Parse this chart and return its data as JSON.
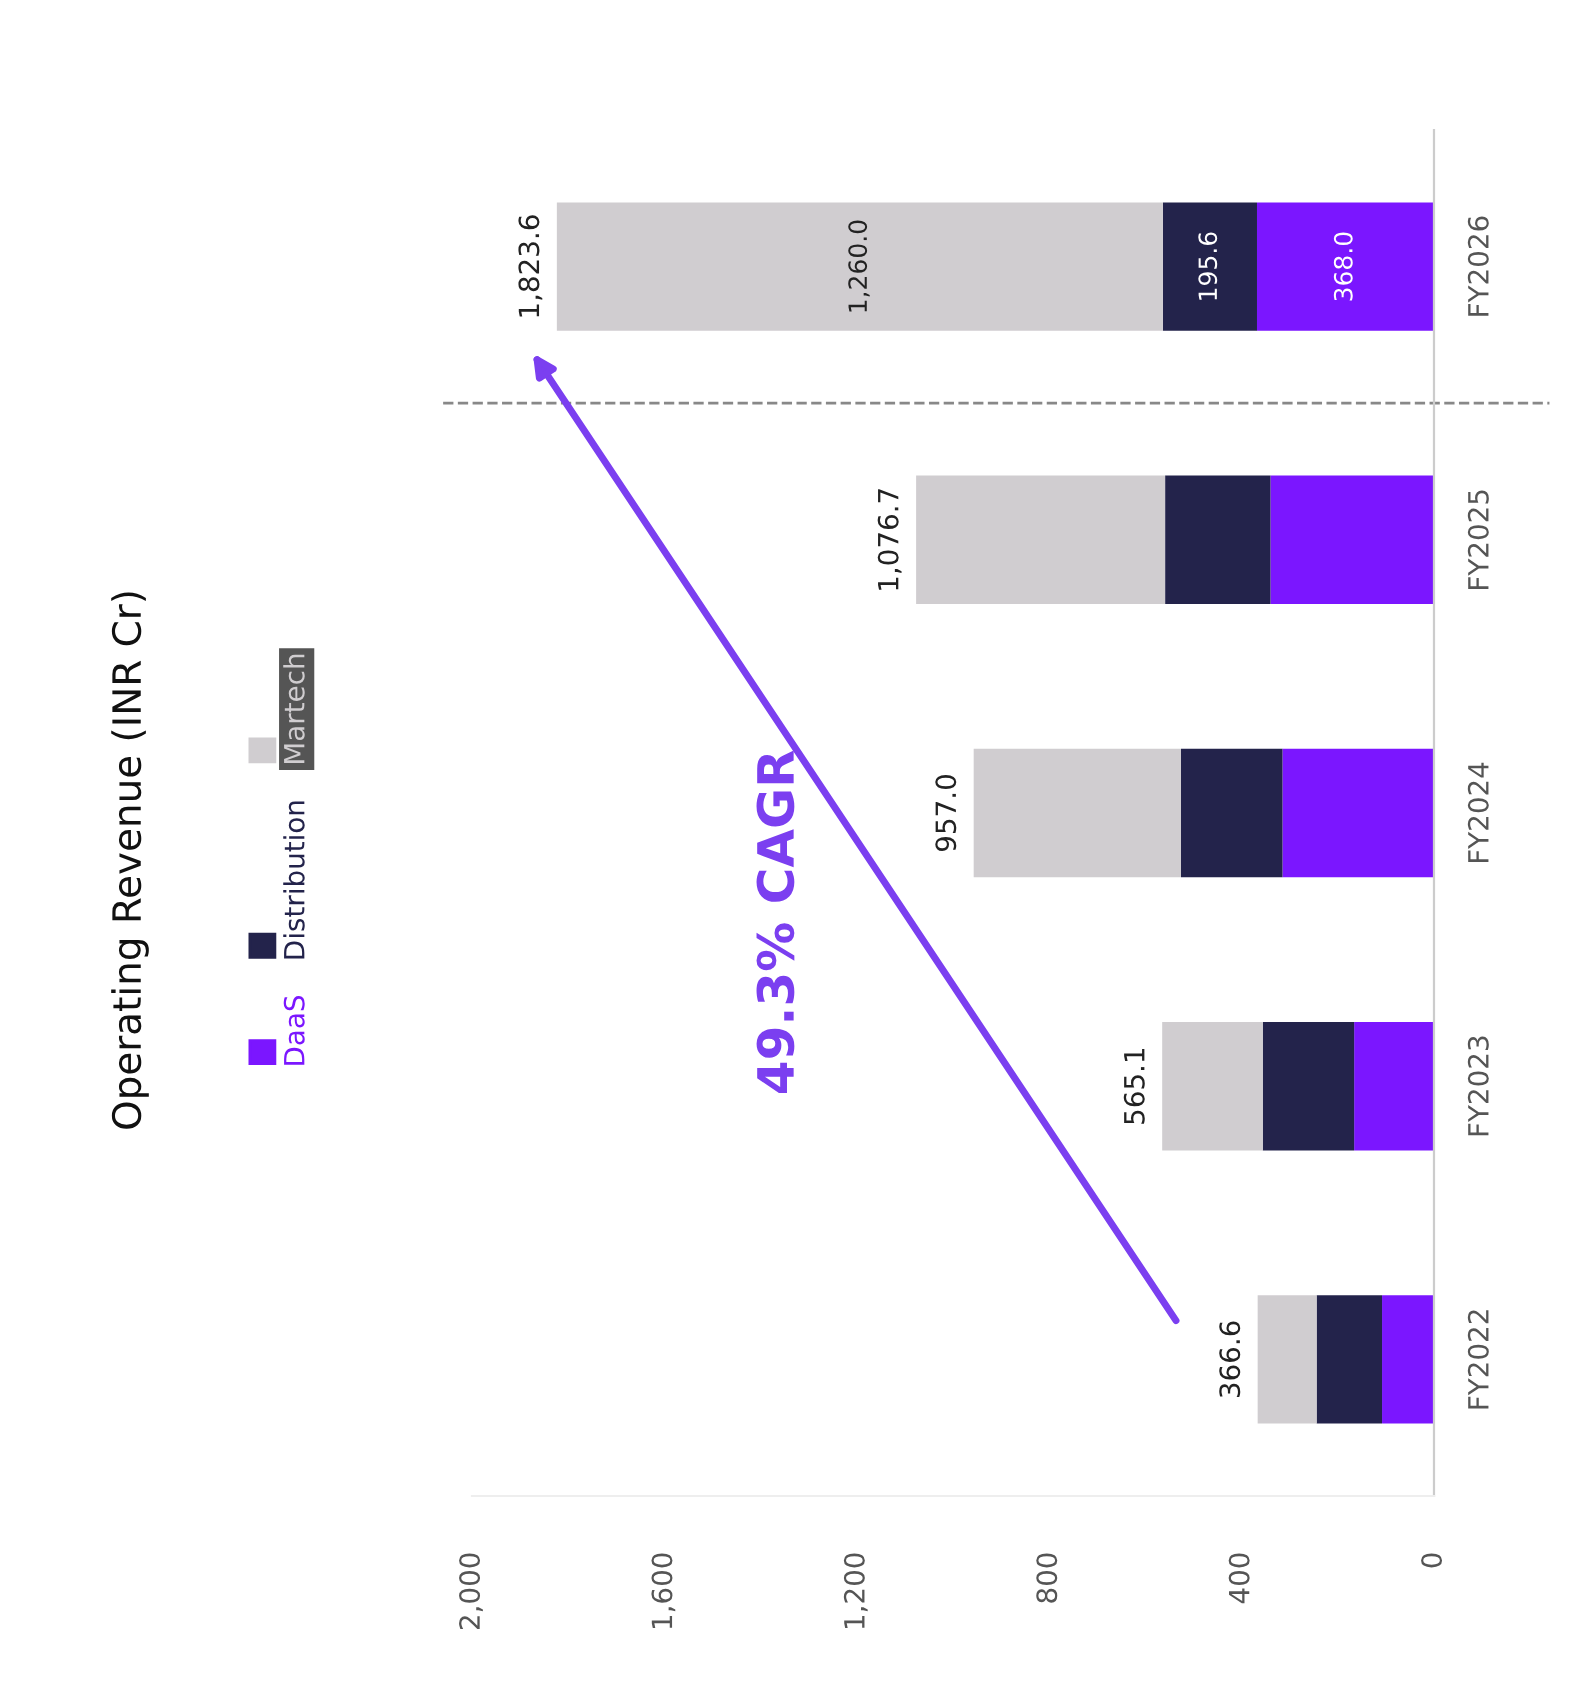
{
  "chart_data": {
    "type": "bar",
    "orientation": "horizontal",
    "stacked": true,
    "title": "Operating Revenue (INR Cr)",
    "categories": [
      "FY2026",
      "FY2025",
      "FY2024",
      "FY2023",
      "FY2022"
    ],
    "series": [
      {
        "name": "DaaS",
        "color": "#7b16ff",
        "values": [
          368.0,
          340,
          315,
          166,
          108
        ],
        "value_labels": [
          "368.0",
          null,
          null,
          null,
          null
        ]
      },
      {
        "name": "Distribution",
        "color": "#23234b",
        "values": [
          195.6,
          219,
          211,
          190,
          136
        ],
        "value_labels": [
          "195.6",
          null,
          null,
          null,
          null
        ]
      },
      {
        "name": "Martech",
        "color": "#d0cdd0",
        "values": [
          1260.0,
          517.7,
          431,
          209.1,
          122.6
        ],
        "value_labels": [
          "1,260.0",
          null,
          null,
          null,
          null
        ]
      }
    ],
    "totals": [
      "1,823.6",
      "1,076.7",
      "957.0",
      "565.1",
      "366.6"
    ],
    "xlim": [
      2000,
      0
    ],
    "xticks": [
      {
        "value": 2000,
        "label": "2,000"
      },
      {
        "value": 1600,
        "label": "1,600"
      },
      {
        "value": 1200,
        "label": "1,200"
      },
      800,
      400,
      0
    ],
    "annotations": [
      "49.3% CAGR"
    ],
    "legend": "left",
    "grid": false
  }
}
